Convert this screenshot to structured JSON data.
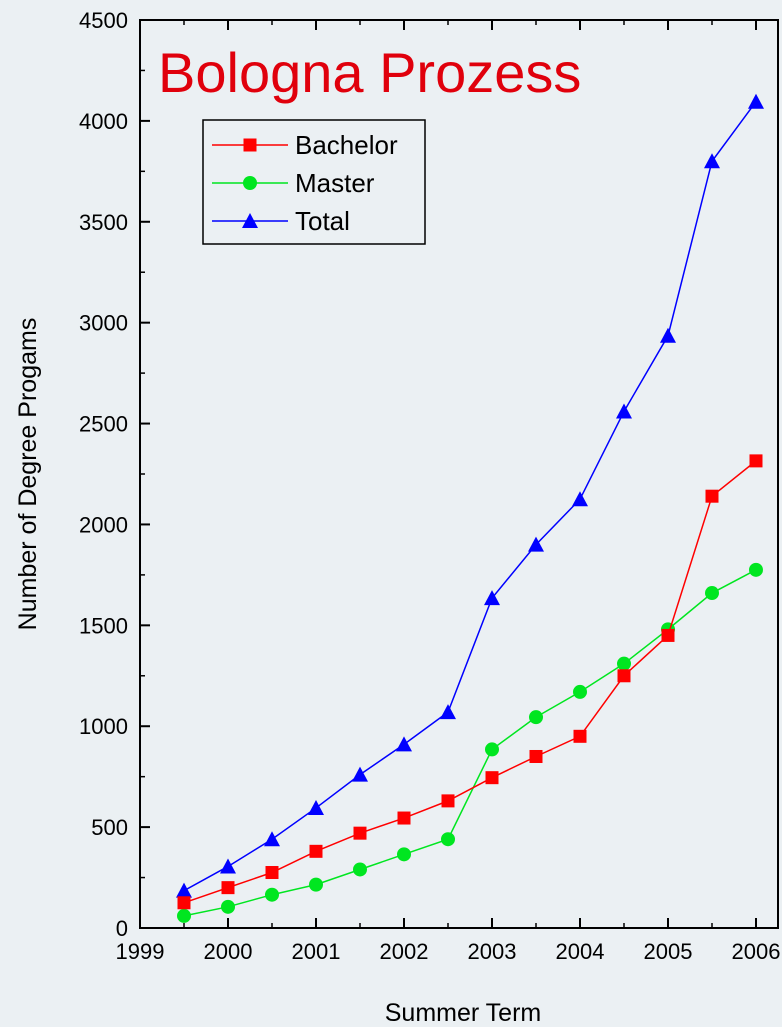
{
  "chart_data": {
    "type": "line",
    "title": "Bologna Prozess",
    "title_color": "#e0000c",
    "xlabel": "Summer Term",
    "ylabel": "Number of Degree Progams",
    "xlim": [
      1999,
      2006.25
    ],
    "ylim": [
      0,
      4500
    ],
    "xticks": [
      1999,
      2000,
      2001,
      2002,
      2003,
      2004,
      2005,
      2006
    ],
    "yticks": [
      0,
      500,
      1000,
      1500,
      2000,
      2500,
      3000,
      3500,
      4000,
      4500
    ],
    "grid": false,
    "legend_position": "top-left",
    "x": [
      1999.5,
      2000,
      2000.5,
      2001,
      2001.5,
      2002,
      2002.5,
      2003,
      2003.5,
      2004,
      2004.5,
      2005,
      2005.5,
      2006
    ],
    "series": [
      {
        "name": "Bachelor",
        "color": "#ff0000",
        "marker": "square",
        "values": [
          125,
          200,
          275,
          380,
          470,
          545,
          630,
          745,
          850,
          950,
          1250,
          1450,
          2140,
          2315
        ]
      },
      {
        "name": "Master",
        "color": "#00e620",
        "marker": "circle",
        "values": [
          60,
          105,
          165,
          215,
          290,
          365,
          440,
          885,
          1045,
          1170,
          1310,
          1480,
          1660,
          1775
        ]
      },
      {
        "name": "Total",
        "color": "#0000ff",
        "marker": "triangle",
        "values": [
          185,
          305,
          440,
          595,
          760,
          910,
          1070,
          1635,
          1900,
          2125,
          2560,
          2935,
          3800,
          4095
        ]
      }
    ]
  }
}
